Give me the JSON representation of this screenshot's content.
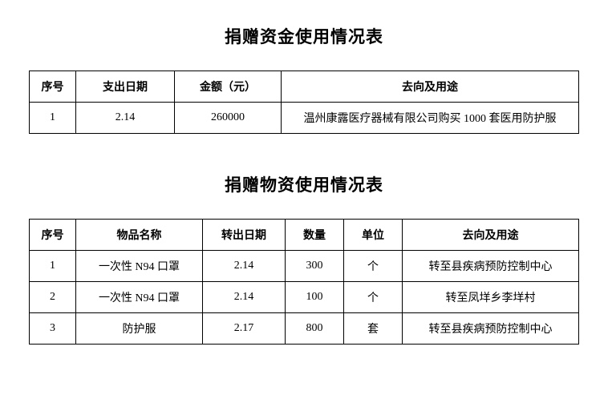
{
  "table1": {
    "title": "捐赠资金使用情况表",
    "headers": {
      "seq": "序号",
      "date": "支出日期",
      "amount": "金额（元）",
      "usage": "去向及用途"
    },
    "rows": [
      {
        "seq": "1",
        "date": "2.14",
        "amount": "260000",
        "usage": "温州康露医疗器械有限公司购买 1000 套医用防护服"
      }
    ]
  },
  "table2": {
    "title": "捐赠物资使用情况表",
    "headers": {
      "seq": "序号",
      "name": "物品名称",
      "date": "转出日期",
      "qty": "数量",
      "unit": "单位",
      "usage": "去向及用途"
    },
    "rows": [
      {
        "seq": "1",
        "name": "一次性 N94 口罩",
        "date": "2.14",
        "qty": "300",
        "unit": "个",
        "usage": "转至县疾病预防控制中心"
      },
      {
        "seq": "2",
        "name": "一次性 N94 口罩",
        "date": "2.14",
        "qty": "100",
        "unit": "个",
        "usage": "转至凤垟乡李垟村"
      },
      {
        "seq": "3",
        "name": "防护服",
        "date": "2.17",
        "qty": "800",
        "unit": "套",
        "usage": "转至县疾病预防控制中心"
      }
    ]
  }
}
